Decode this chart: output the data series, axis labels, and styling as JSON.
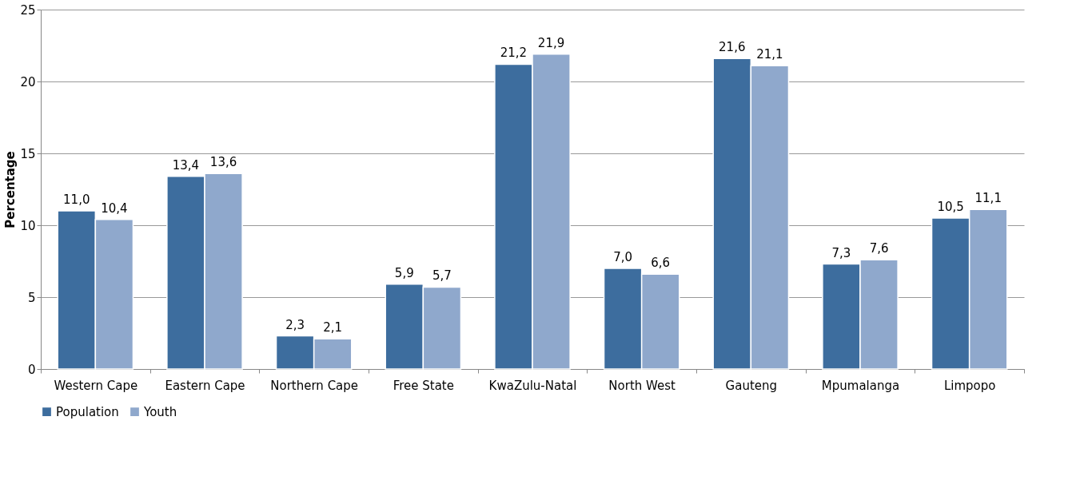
{
  "chart_data": {
    "type": "bar",
    "ylabel": "Percentage",
    "categories": [
      "Western Cape",
      "Eastern Cape",
      "Northern Cape",
      "Free State",
      "KwaZulu-Natal",
      "North West",
      "Gauteng",
      "Mpumalanga",
      "Limpopo"
    ],
    "series": [
      {
        "name": "Population",
        "color": "#3d6d9e",
        "values": [
          11.0,
          13.4,
          2.3,
          5.9,
          21.2,
          7.0,
          21.6,
          7.3,
          10.5
        ],
        "value_labels": [
          "11,0",
          "13,4",
          "2,3",
          "5,9",
          "21,2",
          "7,0",
          "21,6",
          "7,3",
          "10,5"
        ]
      },
      {
        "name": "Youth",
        "color": "#8fa8cc",
        "values": [
          10.4,
          13.6,
          2.1,
          5.7,
          21.9,
          6.6,
          21.1,
          7.6,
          11.1
        ],
        "value_labels": [
          "10,4",
          "13,6",
          "2,1",
          "5,7",
          "21,9",
          "6,6",
          "21,1",
          "7,6",
          "11,1"
        ]
      }
    ],
    "ylim": [
      0,
      25
    ],
    "yticks": [
      0,
      5,
      10,
      15,
      20,
      25
    ],
    "grid": "y",
    "legend": "bottom"
  }
}
